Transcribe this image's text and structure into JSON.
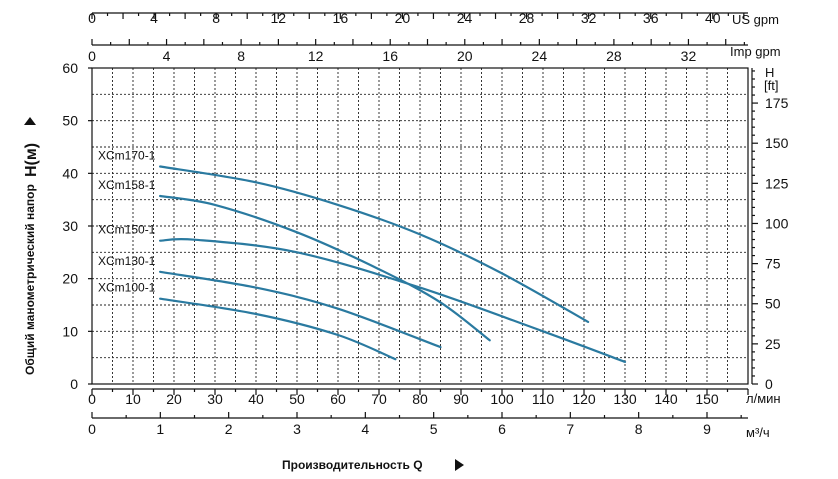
{
  "chart_data": {
    "type": "line",
    "y_left": {
      "label": "Общий манометрический напор",
      "symbol": "H(м)",
      "ticks": [
        0,
        10,
        20,
        30,
        40,
        50,
        60
      ],
      "range": [
        0,
        60
      ]
    },
    "y_right": {
      "unit": "H",
      "unit2": "[ft]",
      "ticks": [
        0,
        25,
        50,
        75,
        100,
        125,
        150,
        175
      ]
    },
    "x_top_us": {
      "unit": "US gpm",
      "ticks": [
        0,
        4,
        8,
        12,
        16,
        20,
        24,
        28,
        32,
        36,
        40
      ]
    },
    "x_top_imp": {
      "unit": "Imp gpm",
      "ticks": [
        0,
        4,
        8,
        12,
        16,
        20,
        24,
        28,
        32
      ]
    },
    "x_lmin": {
      "unit": "л/мин",
      "ticks": [
        0,
        10,
        20,
        30,
        40,
        50,
        60,
        70,
        80,
        90,
        100,
        110,
        120,
        130,
        140,
        150
      ],
      "range": [
        0,
        160
      ]
    },
    "x_m3h": {
      "unit": "м³/ч",
      "ticks": [
        0,
        1,
        2,
        3,
        4,
        5,
        6,
        7,
        8,
        9
      ]
    },
    "xlabel": "Производительность Q",
    "series": [
      {
        "name": "XCm170-1",
        "x": [
          16.6,
          40,
          60,
          80,
          100,
          121
        ],
        "y": [
          41.3,
          38.3,
          34.0,
          28.4,
          21.0,
          11.8
        ]
      },
      {
        "name": "XCm158-1",
        "x": [
          16.6,
          30,
          50,
          70,
          85,
          97
        ],
        "y": [
          35.7,
          34.0,
          28.8,
          21.8,
          15.5,
          8.3
        ]
      },
      {
        "name": "XCm150-1",
        "x": [
          16.6,
          25,
          50,
          80,
          110,
          130
        ],
        "y": [
          27.2,
          27.4,
          25.0,
          18.3,
          10.0,
          4.2
        ]
      },
      {
        "name": "XCm130-1",
        "x": [
          16.6,
          40,
          60,
          85
        ],
        "y": [
          21.3,
          18.3,
          14.3,
          7.0
        ]
      },
      {
        "name": "XCm100-1",
        "x": [
          16.6,
          40,
          60,
          74
        ],
        "y": [
          16.2,
          13.3,
          9.3,
          4.7
        ]
      }
    ]
  }
}
